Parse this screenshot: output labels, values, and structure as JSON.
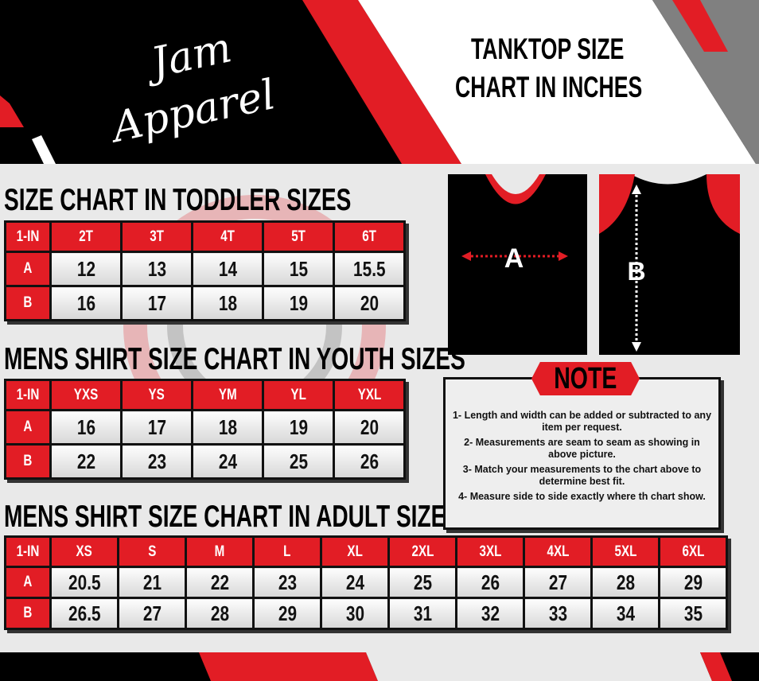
{
  "header": {
    "logo_line1": "Jam",
    "logo_line2": "Apparel",
    "title_line1": "TANKTOP  SIZE",
    "title_line2": "CHART IN INCHES"
  },
  "colors": {
    "accent_red": "#e21d25",
    "black": "#000000",
    "gray": "#808080"
  },
  "toddler": {
    "title": "SIZE CHART IN TODDLER  SIZES",
    "headers": [
      "1-IN",
      "2T",
      "3T",
      "4T",
      "5T",
      "6T"
    ],
    "rows": [
      {
        "label": "A",
        "values": [
          "12",
          "13",
          "14",
          "15",
          "15.5"
        ]
      },
      {
        "label": "B",
        "values": [
          "16",
          "17",
          "18",
          "19",
          "20"
        ]
      }
    ]
  },
  "youth": {
    "title": "MENS SHIRT SIZE CHART IN YOUTH  SIZES",
    "headers": [
      "1-IN",
      "YXS",
      "YS",
      "YM",
      "YL",
      "YXL"
    ],
    "rows": [
      {
        "label": "A",
        "values": [
          "16",
          "17",
          "18",
          "19",
          "20"
        ]
      },
      {
        "label": "B",
        "values": [
          "22",
          "23",
          "24",
          "25",
          "26"
        ]
      }
    ]
  },
  "adult": {
    "title": "MENS SHIRT SIZE CHART IN ADULT SIZES",
    "headers": [
      "1-IN",
      "XS",
      "S",
      "M",
      "L",
      "XL",
      "2XL",
      "3XL",
      "4XL",
      "5XL",
      "6XL"
    ],
    "rows": [
      {
        "label": "A",
        "values": [
          "20.5",
          "21",
          "22",
          "23",
          "24",
          "25",
          "26",
          "27",
          "28",
          "29"
        ]
      },
      {
        "label": "B",
        "values": [
          "26.5",
          "27",
          "28",
          "29",
          "30",
          "31",
          "32",
          "33",
          "34",
          "35"
        ]
      }
    ]
  },
  "diagram": {
    "front_label": "A",
    "back_label": "B"
  },
  "note": {
    "title": "NOTE",
    "items": [
      "1- Length and width can be added or subtracted to any item per request.",
      "2- Measurements are seam to seam  as showing in above picture.",
      "3- Match your measurements to the chart above to determine best fit.",
      "4- Measure side to side exactly where th chart show."
    ]
  }
}
